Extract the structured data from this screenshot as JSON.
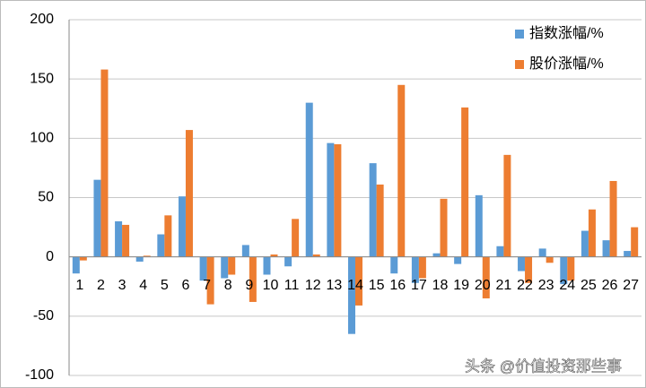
{
  "chart_data": {
    "type": "bar",
    "categories": [
      "1",
      "2",
      "3",
      "4",
      "5",
      "6",
      "7",
      "8",
      "9",
      "10",
      "11",
      "12",
      "13",
      "14",
      "15",
      "16",
      "17",
      "18",
      "19",
      "20",
      "21",
      "22",
      "23",
      "24",
      "25",
      "26",
      "27"
    ],
    "series": [
      {
        "name": "指数涨幅/%",
        "color": "#5b9bd5",
        "values": [
          -14,
          65,
          30,
          -4,
          19,
          51,
          -20,
          -18,
          10,
          -15,
          -8,
          130,
          96,
          -65,
          79,
          -14,
          -22,
          3,
          -6,
          52,
          9,
          -12,
          7,
          -23,
          22,
          14,
          5
        ]
      },
      {
        "name": "股价涨幅/%",
        "color": "#ed7d31",
        "values": [
          -3,
          158,
          27,
          1,
          35,
          107,
          -40,
          -15,
          -38,
          2,
          32,
          2,
          95,
          -41,
          61,
          145,
          -18,
          49,
          126,
          -35,
          86,
          -22,
          -5,
          -20,
          40,
          64,
          25
        ]
      }
    ],
    "ylim": [
      -100,
      200
    ],
    "yticks": [
      -100,
      -50,
      0,
      50,
      100,
      150,
      200
    ],
    "grid": true,
    "legend": "top-right",
    "watermark": "头条 @价值投资那些事"
  }
}
